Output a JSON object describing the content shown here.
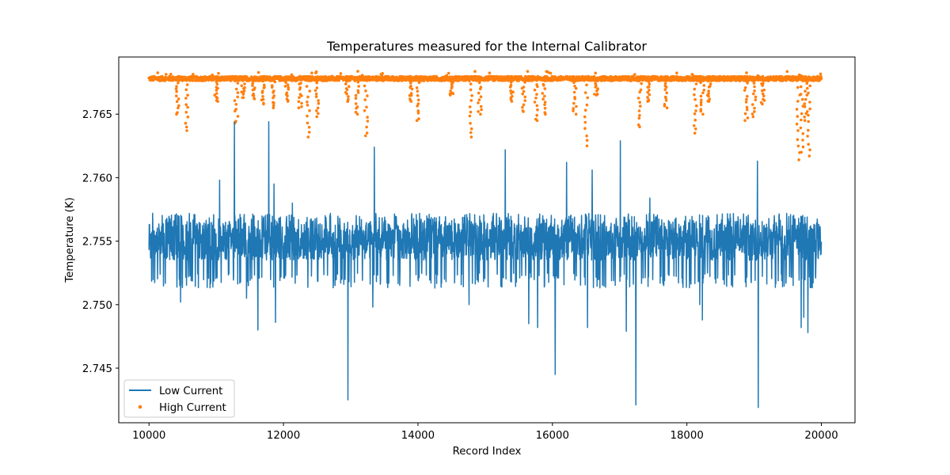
{
  "chart_data": {
    "type": "line",
    "title": "Temperatures measured for the Internal Calibrator",
    "xlabel": "Record Index",
    "ylabel": "Temperature (K)",
    "xlim": [
      9550,
      20500
    ],
    "ylim": [
      2.7407,
      2.7695
    ],
    "xticks": [
      10000,
      12000,
      14000,
      16000,
      18000,
      20000
    ],
    "xtick_labels": [
      "10000",
      "12000",
      "14000",
      "16000",
      "18000",
      "20000"
    ],
    "yticks": [
      2.745,
      2.75,
      2.755,
      2.76,
      2.765
    ],
    "ytick_labels": [
      "2.745",
      "2.750",
      "2.755",
      "2.760",
      "2.765"
    ],
    "grid": false,
    "legend_position": "lower-left",
    "series": [
      {
        "name": "Low Current",
        "style": "line",
        "color": "#1f77b4",
        "x_start": 10000,
        "x_end": 20000,
        "baseline": 2.7548,
        "band_low": 2.7535,
        "band_high": 2.7572,
        "spikes": [
          {
            "x": 11050,
            "y": 2.7598
          },
          {
            "x": 11270,
            "y": 2.7644
          },
          {
            "x": 11780,
            "y": 2.7644
          },
          {
            "x": 11860,
            "y": 2.7595
          },
          {
            "x": 12130,
            "y": 2.758
          },
          {
            "x": 13350,
            "y": 2.7624
          },
          {
            "x": 15300,
            "y": 2.7622
          },
          {
            "x": 16210,
            "y": 2.7612
          },
          {
            "x": 16590,
            "y": 2.7606
          },
          {
            "x": 17010,
            "y": 2.7629
          },
          {
            "x": 17450,
            "y": 2.7584
          },
          {
            "x": 19050,
            "y": 2.7613
          },
          {
            "x": 11620,
            "y": 2.748
          },
          {
            "x": 11880,
            "y": 2.7486
          },
          {
            "x": 12960,
            "y": 2.7425
          },
          {
            "x": 14760,
            "y": 2.75
          },
          {
            "x": 15650,
            "y": 2.7485
          },
          {
            "x": 15780,
            "y": 2.7482
          },
          {
            "x": 16040,
            "y": 2.7445
          },
          {
            "x": 16520,
            "y": 2.7482
          },
          {
            "x": 17100,
            "y": 2.7479
          },
          {
            "x": 17240,
            "y": 2.7421
          },
          {
            "x": 18230,
            "y": 2.7488
          },
          {
            "x": 19060,
            "y": 2.7419
          },
          {
            "x": 19700,
            "y": 2.7482
          },
          {
            "x": 19800,
            "y": 2.7478
          },
          {
            "x": 19740,
            "y": 2.749
          },
          {
            "x": 10470,
            "y": 2.7502
          },
          {
            "x": 11450,
            "y": 2.7505
          },
          {
            "x": 13330,
            "y": 2.7498
          },
          {
            "x": 18190,
            "y": 2.75
          }
        ]
      },
      {
        "name": "High Current",
        "style": "scatter",
        "color": "#ff7f0e",
        "x_start": 10000,
        "x_end": 20000,
        "baseline": 2.7678,
        "dips": [
          {
            "x": 10420,
            "y": 2.765
          },
          {
            "x": 10560,
            "y": 2.7637
          },
          {
            "x": 11000,
            "y": 2.766
          },
          {
            "x": 11300,
            "y": 2.7643
          },
          {
            "x": 11400,
            "y": 2.7663
          },
          {
            "x": 11550,
            "y": 2.7662
          },
          {
            "x": 11700,
            "y": 2.7658
          },
          {
            "x": 11850,
            "y": 2.7655
          },
          {
            "x": 12050,
            "y": 2.766
          },
          {
            "x": 12250,
            "y": 2.7655
          },
          {
            "x": 12370,
            "y": 2.7632
          },
          {
            "x": 12500,
            "y": 2.7648
          },
          {
            "x": 12950,
            "y": 2.766
          },
          {
            "x": 13100,
            "y": 2.765
          },
          {
            "x": 13230,
            "y": 2.7633
          },
          {
            "x": 13900,
            "y": 2.766
          },
          {
            "x": 14000,
            "y": 2.7645
          },
          {
            "x": 14500,
            "y": 2.7665
          },
          {
            "x": 14780,
            "y": 2.7632
          },
          {
            "x": 14920,
            "y": 2.765
          },
          {
            "x": 15400,
            "y": 2.766
          },
          {
            "x": 15570,
            "y": 2.7652
          },
          {
            "x": 15760,
            "y": 2.7645
          },
          {
            "x": 15870,
            "y": 2.765
          },
          {
            "x": 16330,
            "y": 2.765
          },
          {
            "x": 16500,
            "y": 2.7625
          },
          {
            "x": 16650,
            "y": 2.7665
          },
          {
            "x": 17300,
            "y": 2.764
          },
          {
            "x": 17440,
            "y": 2.766
          },
          {
            "x": 17690,
            "y": 2.7655
          },
          {
            "x": 18130,
            "y": 2.7635
          },
          {
            "x": 18230,
            "y": 2.765
          },
          {
            "x": 18330,
            "y": 2.766
          },
          {
            "x": 18880,
            "y": 2.7645
          },
          {
            "x": 19000,
            "y": 2.7648
          },
          {
            "x": 19130,
            "y": 2.7658
          },
          {
            "x": 19660,
            "y": 2.7614
          },
          {
            "x": 19710,
            "y": 2.762
          },
          {
            "x": 19810,
            "y": 2.7617
          },
          {
            "x": 19770,
            "y": 2.7645
          }
        ]
      }
    ]
  },
  "legend": {
    "low_label": "Low Current",
    "high_label": "High Current"
  },
  "colors": {
    "low": "#1f77b4",
    "high": "#ff7f0e",
    "axes": "#000000",
    "background": "#ffffff"
  }
}
